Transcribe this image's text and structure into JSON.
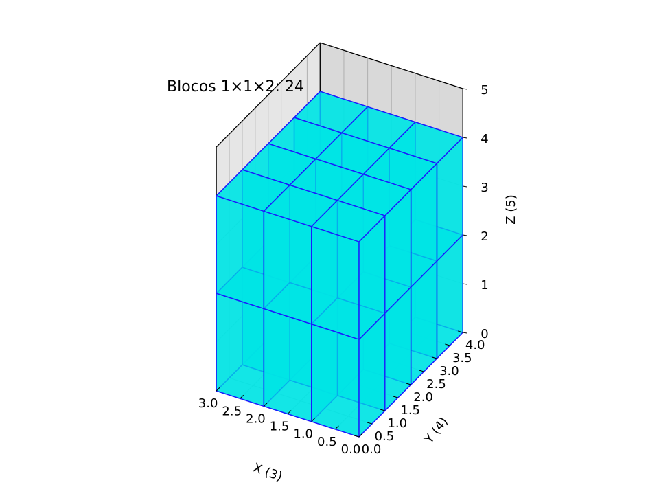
{
  "chart_data": {
    "type": "bar3d",
    "title": "Blocos 1×1×2: 24",
    "xlabel": "X (3)",
    "ylabel": "Y (4)",
    "zlabel": "Z (5)",
    "xlim": [
      0,
      3
    ],
    "ylim": [
      0,
      4
    ],
    "zlim": [
      0,
      5
    ],
    "x_ticks": [
      "0.0",
      "0.5",
      "1.0",
      "1.5",
      "2.0",
      "2.5",
      "3.0"
    ],
    "y_ticks": [
      "0.0",
      "0.5",
      "1.0",
      "1.5",
      "2.0",
      "2.5",
      "3.0",
      "3.5",
      "4.0"
    ],
    "z_ticks": [
      "0",
      "1",
      "2",
      "3",
      "4",
      "5"
    ],
    "block_size": [
      1,
      1,
      2
    ],
    "block_count": 24,
    "filled_region": {
      "x": [
        0,
        3
      ],
      "y": [
        0,
        4
      ],
      "z": [
        0,
        4
      ]
    },
    "grid": true,
    "colors": {
      "face": "#00e5e5",
      "edge": "#1a1aff",
      "pane_back": "#d9d9d9",
      "pane_side": "#e6e6e6",
      "pane_floor": "#f2f2f2"
    }
  }
}
